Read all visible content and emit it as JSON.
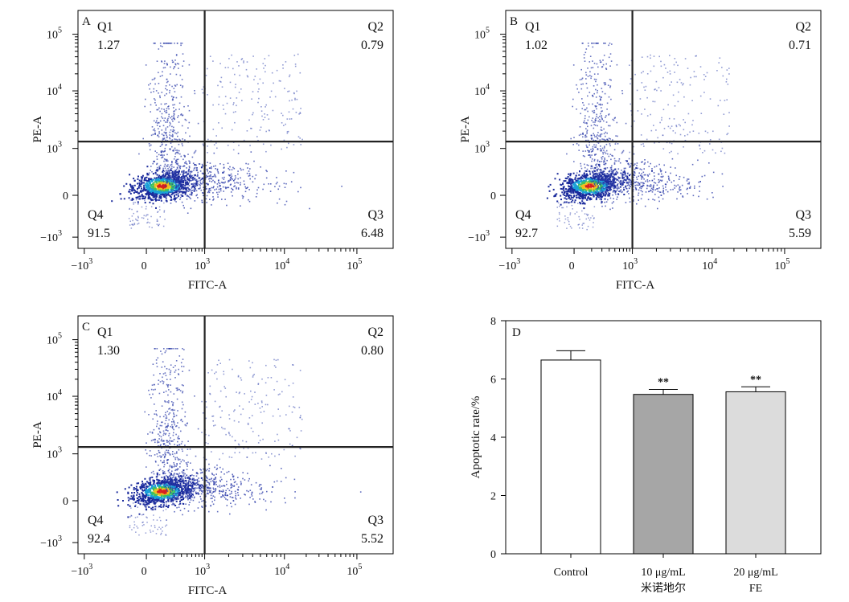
{
  "axis_tick_labels": [
    "−10",
    "3",
    "0",
    "10",
    "3",
    "10",
    "4",
    "10",
    "5"
  ],
  "chart_data": [
    {
      "type": "scatter",
      "panel": "A",
      "xlabel": "FITC-A",
      "ylabel": "PE-A",
      "x_ticks": [
        "−10³",
        "0",
        "10³",
        "10⁴",
        "10⁵"
      ],
      "y_ticks": [
        "−10³",
        "0",
        "10³",
        "10⁴",
        "10⁵"
      ],
      "quadrants": [
        {
          "label": "Q1",
          "value": "1.27"
        },
        {
          "label": "Q2",
          "value": "0.79"
        },
        {
          "label": "Q3",
          "value": "6.48"
        },
        {
          "label": "Q4",
          "value": "91.5"
        }
      ]
    },
    {
      "type": "scatter",
      "panel": "B",
      "xlabel": "FITC-A",
      "ylabel": "PE-A",
      "x_ticks": [
        "−10³",
        "0",
        "10³",
        "10⁴",
        "10⁵"
      ],
      "y_ticks": [
        "−10³",
        "0",
        "10³",
        "10⁴",
        "10⁵"
      ],
      "quadrants": [
        {
          "label": "Q1",
          "value": "1.02"
        },
        {
          "label": "Q2",
          "value": "0.71"
        },
        {
          "label": "Q3",
          "value": "5.59"
        },
        {
          "label": "Q4",
          "value": "92.7"
        }
      ]
    },
    {
      "type": "scatter",
      "panel": "C",
      "xlabel": "FITC-A",
      "ylabel": "PE-A",
      "x_ticks": [
        "−10³",
        "0",
        "10³",
        "10⁴",
        "10⁵"
      ],
      "y_ticks": [
        "−10³",
        "0",
        "10³",
        "10⁴",
        "10⁵"
      ],
      "quadrants": [
        {
          "label": "Q1",
          "value": "1.30"
        },
        {
          "label": "Q2",
          "value": "0.80"
        },
        {
          "label": "Q3",
          "value": "5.52"
        },
        {
          "label": "Q4",
          "value": "92.4"
        }
      ]
    },
    {
      "type": "bar",
      "panel": "D",
      "ylabel": "Apoptotic rate/%",
      "ylim": [
        0,
        8
      ],
      "y_ticks": [
        0,
        2,
        4,
        6,
        8
      ],
      "categories": [
        {
          "line1": "Control",
          "line2": ""
        },
        {
          "line1": "10 μg/mL",
          "line2": "米诺地尔"
        },
        {
          "line1": "20 μg/mL",
          "line2": "FE"
        }
      ],
      "values": [
        6.65,
        5.47,
        5.56
      ],
      "errors": [
        0.32,
        0.17,
        0.17
      ],
      "significance": [
        "",
        "**",
        "**"
      ],
      "colors": [
        "#ffffff",
        "#a6a6a6",
        "#dcdcdc"
      ]
    }
  ]
}
